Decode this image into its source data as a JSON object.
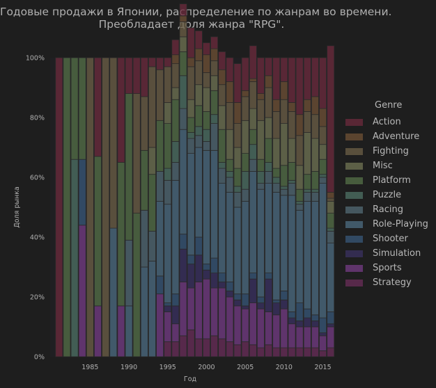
{
  "title_lines": [
    "Годовые продажи в Японии, распределение по жанрам во времени.",
    "Преобладает доля жанра \"RPG\"."
  ],
  "chart_data": {
    "type": "bar",
    "stacked": "percent",
    "xlabel": "Год",
    "ylabel": "Доля рынка",
    "ylim": [
      0,
      1
    ],
    "yticks": [
      "0%",
      "20%",
      "40%",
      "60%",
      "80%",
      "100%"
    ],
    "xticks": [
      "1985",
      "1990",
      "1995",
      "2000",
      "2005",
      "2010",
      "2015"
    ],
    "legend_title": "Genre",
    "legend_position": "right",
    "x": [
      1981,
      1982,
      1983,
      1984,
      1985,
      1986,
      1987,
      1988,
      1989,
      1990,
      1991,
      1992,
      1993,
      1994,
      1995,
      1996,
      1997,
      1998,
      1999,
      2000,
      2001,
      2002,
      2003,
      2004,
      2005,
      2006,
      2007,
      2008,
      2009,
      2010,
      2011,
      2012,
      2013,
      2014,
      2015,
      2016
    ],
    "series": [
      {
        "name": "Strategy",
        "color": "#6b2e59",
        "values": [
          0,
          0,
          0,
          0,
          0,
          0,
          0,
          0,
          0,
          0,
          0,
          0,
          0,
          0,
          0.05,
          0.05,
          0.07,
          0.09,
          0.06,
          0.06,
          0.07,
          0.06,
          0.05,
          0.04,
          0.05,
          0.04,
          0.03,
          0.04,
          0.03,
          0.03,
          0.03,
          0.03,
          0.03,
          0.03,
          0.02,
          0.03
        ]
      },
      {
        "name": "Sports",
        "color": "#753c86",
        "values": [
          0,
          0,
          0,
          0.44,
          0,
          0.17,
          0,
          0,
          0.17,
          0,
          0,
          0,
          0,
          0.21,
          0.1,
          0.06,
          0.18,
          0.14,
          0.19,
          0.2,
          0.16,
          0.17,
          0.15,
          0.13,
          0.11,
          0.14,
          0.13,
          0.11,
          0.11,
          0.13,
          0.08,
          0.07,
          0.07,
          0.07,
          0.05,
          0.07
        ]
      },
      {
        "name": "Simulation",
        "color": "#3b3262",
        "values": [
          0,
          0,
          0,
          0,
          0,
          0,
          0,
          0,
          0,
          0,
          0,
          0,
          0,
          0,
          0.02,
          0.06,
          0.11,
          0.08,
          0.09,
          0.03,
          0.05,
          0.02,
          0.02,
          0.02,
          0.01,
          0.08,
          0.02,
          0.11,
          0.04,
          0.03,
          0.02,
          0.02,
          0.03,
          0.02,
          0.01,
          0.01
        ]
      },
      {
        "name": "Shooter",
        "color": "#385879",
        "values": [
          0,
          0,
          0,
          0.22,
          0,
          0,
          0,
          0,
          0,
          0,
          0,
          0,
          0,
          0.06,
          0.01,
          0.04,
          0.05,
          0.03,
          0.06,
          0.02,
          0.05,
          0.03,
          0.03,
          0.02,
          0.04,
          0.02,
          0.02,
          0.02,
          0.01,
          0.03,
          0.02,
          0.06,
          0.03,
          0.02,
          0.05,
          0.04
        ]
      },
      {
        "name": "Role-Playing",
        "color": "#4e6e83",
        "values": [
          0,
          0,
          0,
          0,
          0,
          0,
          0,
          0.43,
          0,
          0.17,
          0,
          0.3,
          0.32,
          0.25,
          0.33,
          0.38,
          0.35,
          0.34,
          0.3,
          0.38,
          0.36,
          0.3,
          0.3,
          0.29,
          0.31,
          0.34,
          0.36,
          0.3,
          0.36,
          0.32,
          0.39,
          0.31,
          0.36,
          0.38,
          0.45,
          0.23
        ]
      },
      {
        "name": "Racing",
        "color": "#536b75",
        "values": [
          0,
          0,
          0,
          0,
          0,
          0,
          0,
          0,
          0,
          0.22,
          0,
          0.19,
          0.1,
          0.1,
          0.08,
          0.06,
          0.07,
          0.05,
          0.04,
          0.03,
          0.09,
          0.05,
          0.05,
          0.05,
          0.04,
          0.04,
          0.02,
          0.04,
          0.03,
          0.02,
          0.04,
          0.02,
          0.03,
          0.03,
          0.02,
          0.04
        ]
      },
      {
        "name": "Puzzle",
        "color": "#4f7366",
        "values": [
          0,
          0,
          0.66,
          0,
          0,
          0,
          0,
          0,
          0,
          0,
          0,
          0,
          0,
          0,
          0.04,
          0.07,
          0.11,
          0.02,
          0.03,
          0.04,
          0.03,
          0.02,
          0.02,
          0.02,
          0.06,
          0.05,
          0.04,
          0.03,
          0.02,
          0.01,
          0.01,
          0.01,
          0.01,
          0.01,
          0.01,
          0.01
        ]
      },
      {
        "name": "Platform",
        "color": "#567148",
        "values": [
          0,
          1.0,
          0.34,
          0.34,
          0,
          0.5,
          0,
          0,
          0.48,
          0.49,
          0.48,
          0.2,
          0.19,
          0.17,
          0.15,
          0.14,
          0.08,
          0.05,
          0.07,
          0.06,
          0.08,
          0.11,
          0.04,
          0.06,
          0.06,
          0.05,
          0.04,
          0.08,
          0.03,
          0.07,
          0.06,
          0.04,
          0.05,
          0.06,
          0.05,
          0.05
        ]
      },
      {
        "name": "Misc",
        "color": "#717554",
        "values": [
          0,
          0,
          0,
          0,
          0,
          0,
          0,
          0,
          0,
          0,
          0,
          0,
          0.09,
          0,
          0.07,
          0.04,
          0.05,
          0.06,
          0.07,
          0.08,
          0.05,
          0.08,
          0.1,
          0.07,
          0.11,
          0.07,
          0.13,
          0.07,
          0.1,
          0.14,
          0.08,
          0.08,
          0.14,
          0.11,
          0.05,
          0.04
        ]
      },
      {
        "name": "Fighting",
        "color": "#6d6047",
        "values": [
          0,
          0,
          0,
          0,
          1.0,
          0,
          1.0,
          0.57,
          0,
          0,
          0.4,
          0.18,
          0.27,
          0.17,
          0.12,
          0.08,
          0.05,
          0.11,
          0.08,
          0.05,
          0.05,
          0.07,
          0.09,
          0.08,
          0.08,
          0.09,
          0.07,
          0.1,
          0.09,
          0.08,
          0.09,
          0.1,
          0.07,
          0.08,
          0.06,
          0.01
        ]
      },
      {
        "name": "Adventure",
        "color": "#705236",
        "values": [
          0,
          0,
          0,
          0,
          0,
          0,
          0,
          0,
          0,
          0,
          0,
          0,
          0,
          0,
          0,
          0.03,
          0.02,
          0.03,
          0.04,
          0.06,
          0.04,
          0.05,
          0.07,
          0.07,
          0.02,
          0.01,
          0.02,
          0.04,
          0.04,
          0.06,
          0.03,
          0.07,
          0.04,
          0.06,
          0.06,
          0.02
        ]
      },
      {
        "name": "Action",
        "color": "#6e2b3d",
        "values": [
          1.0,
          0,
          0,
          0,
          0,
          0.33,
          0,
          0,
          0.35,
          0.12,
          0.12,
          0.13,
          0.03,
          0.04,
          0.03,
          0.05,
          0.04,
          0.1,
          0.06,
          0.04,
          0.04,
          0.06,
          0.08,
          0.13,
          0.11,
          0.11,
          0.12,
          0.06,
          0.14,
          0.08,
          0.15,
          0.19,
          0.14,
          0.13,
          0.17,
          0.49
        ]
      }
    ]
  }
}
